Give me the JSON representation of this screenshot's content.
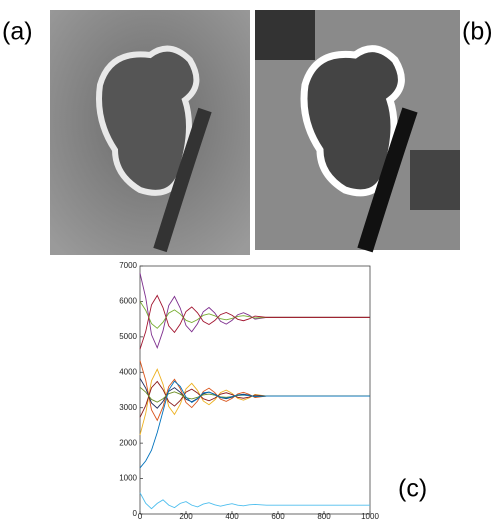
{
  "labels": [
    "(a)",
    "(b)",
    "(c)"
  ],
  "chart_data": {
    "type": "line",
    "x": [
      0,
      25,
      50,
      75,
      100,
      125,
      150,
      175,
      200,
      225,
      250,
      275,
      300,
      325,
      350,
      375,
      400,
      425,
      450,
      475,
      500,
      550,
      600,
      650,
      700,
      750,
      800,
      850,
      900,
      950,
      1000
    ],
    "xlim": [
      0,
      1000
    ],
    "ylim": [
      0,
      7000
    ],
    "xticks": [
      0,
      200,
      400,
      600,
      800,
      1000
    ],
    "yticks": [
      0,
      1000,
      2000,
      3000,
      4000,
      5000,
      6000,
      7000
    ],
    "series": [
      {
        "color": "#7e2f8e",
        "values": [
          6800,
          6101,
          5062,
          4691,
          5170,
          5885,
          6140,
          5811,
          5320,
          5144,
          5370,
          5709,
          5829,
          5674,
          5441,
          5359,
          5465,
          5625,
          5681,
          5609,
          5499,
          5550,
          5550,
          5550,
          5550,
          5550,
          5550,
          5550,
          5550,
          5550,
          5550
        ]
      },
      {
        "color": "#77ac30",
        "values": [
          6000,
          5748,
          5374,
          5241,
          5413,
          5671,
          5762,
          5644,
          5467,
          5404,
          5485,
          5607,
          5650,
          5595,
          5511,
          5481,
          5519,
          5577,
          5597,
          5571,
          5532,
          5550,
          5550,
          5550,
          5550,
          5550,
          5550,
          5550,
          5550,
          5550,
          5550
        ]
      },
      {
        "color": "#a2142f",
        "values": [
          4650,
          5153,
          5901,
          6168,
          5824,
          5309,
          5125,
          5362,
          5716,
          5843,
          5680,
          5436,
          5349,
          5461,
          5628,
          5688,
          5611,
          5496,
          5455,
          5508,
          5587,
          5550,
          5550,
          5550,
          5550,
          5550,
          5550,
          5550,
          5550,
          5550,
          5550
        ]
      },
      {
        "color": "#d95319",
        "values": [
          4330,
          3771,
          2940,
          2643,
          3026,
          3598,
          3802,
          3539,
          3146,
          3005,
          3186,
          3457,
          3553,
          3429,
          3243,
          3177,
          3262,
          3390,
          3435,
          3377,
          3289,
          3330,
          3330,
          3330,
          3330,
          3330,
          3330,
          3330,
          3330,
          3330,
          3330
        ]
      },
      {
        "color": "#edb120",
        "values": [
          2230,
          2845,
          3759,
          4086,
          3664,
          3035,
          2811,
          3100,
          3532,
          3688,
          3488,
          3190,
          3085,
          3221,
          3426,
          3498,
          3405,
          3264,
          3214,
          3278,
          3375,
          3330,
          3330,
          3330,
          3330,
          3330,
          3330,
          3330,
          3330,
          3330,
          3330
        ]
      },
      {
        "color": "#1f2a5c",
        "values": [
          3830,
          3551,
          3135,
          2987,
          3178,
          3464,
          3566,
          3435,
          3238,
          3168,
          3258,
          3394,
          3442,
          3380,
          3287,
          3254,
          3296,
          3360,
          3383,
          3354,
          3310,
          3330,
          3330,
          3330,
          3330,
          3330,
          3330,
          3330,
          3330,
          3330,
          3330
        ]
      },
      {
        "color": "#8b1a1a",
        "values": [
          2730,
          3065,
          3564,
          3742,
          3512,
          3169,
          3047,
          3205,
          3440,
          3525,
          3416,
          3254,
          3196,
          3271,
          3382,
          3422,
          3371,
          3294,
          3267,
          3302,
          3355,
          3330,
          3330,
          3330,
          3330,
          3330,
          3330,
          3330,
          3330,
          3330,
          3330
        ]
      },
      {
        "color": "#6b8e23",
        "values": [
          3580,
          3440,
          3233,
          3158,
          3254,
          3397,
          3448,
          3382,
          3284,
          3249,
          3294,
          3362,
          3386,
          3355,
          3308,
          3292,
          3313,
          3345,
          3356,
          3342,
          3320,
          3330,
          3330,
          3330,
          3330,
          3330,
          3330,
          3330,
          3330,
          3330,
          3330
        ]
      },
      {
        "color": "#0072bd",
        "values": [
          1300,
          1500,
          1800,
          2300,
          2900,
          3500,
          3750,
          3600,
          3300,
          3150,
          3250,
          3420,
          3440,
          3370,
          3290,
          3270,
          3310,
          3360,
          3360,
          3340,
          3320,
          3330,
          3330,
          3330,
          3330,
          3330,
          3330,
          3330,
          3330,
          3330,
          3330
        ]
      },
      {
        "color": "#4dbeee",
        "values": [
          600,
          300,
          150,
          300,
          400,
          250,
          180,
          300,
          350,
          250,
          200,
          280,
          320,
          260,
          220,
          260,
          290,
          250,
          230,
          260,
          270,
          250,
          250,
          250,
          250,
          250,
          250,
          250,
          250,
          250,
          250
        ]
      }
    ]
  }
}
